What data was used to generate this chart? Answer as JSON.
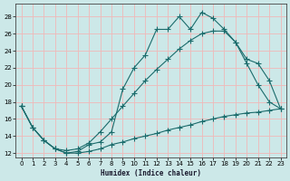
{
  "xlabel": "Humidex (Indice chaleur)",
  "background_color": "#cce8e8",
  "grid_color": "#f0b8b8",
  "line_color": "#1a6b6b",
  "xlim": [
    -0.5,
    23.5
  ],
  "ylim": [
    11.5,
    29.5
  ],
  "xticks": [
    0,
    1,
    2,
    3,
    4,
    5,
    6,
    7,
    8,
    9,
    10,
    11,
    12,
    13,
    14,
    15,
    16,
    17,
    18,
    19,
    20,
    21,
    22,
    23
  ],
  "yticks": [
    12,
    14,
    16,
    18,
    20,
    22,
    24,
    26,
    28
  ],
  "curve1_x": [
    0,
    1,
    2,
    3,
    4,
    5,
    6,
    7,
    8,
    9,
    10,
    11,
    12,
    13,
    14,
    15,
    16,
    17,
    18,
    19,
    20,
    21,
    22,
    23
  ],
  "curve1_y": [
    17.5,
    15.0,
    13.5,
    12.5,
    12.0,
    12.2,
    13.0,
    13.3,
    14.5,
    19.5,
    22.0,
    23.5,
    26.5,
    26.5,
    28.0,
    26.5,
    28.5,
    27.8,
    26.5,
    25.0,
    23.0,
    22.5,
    20.5,
    17.2
  ],
  "curve2_x": [
    0,
    1,
    2,
    3,
    4,
    5,
    6,
    7,
    8,
    9,
    10,
    11,
    12,
    13,
    14,
    15,
    16,
    17,
    18,
    19,
    20,
    21,
    22,
    23
  ],
  "curve2_y": [
    17.5,
    15.0,
    13.5,
    12.5,
    12.3,
    12.5,
    13.2,
    14.5,
    16.0,
    17.5,
    19.0,
    20.5,
    21.8,
    23.0,
    24.2,
    25.2,
    26.0,
    26.3,
    26.3,
    25.0,
    22.5,
    20.0,
    18.0,
    17.2
  ],
  "curve3_x": [
    0,
    1,
    2,
    3,
    4,
    5,
    6,
    7,
    8,
    9,
    10,
    11,
    12,
    13,
    14,
    15,
    16,
    17,
    18,
    19,
    20,
    21,
    22,
    23
  ],
  "curve3_y": [
    17.5,
    15.0,
    13.5,
    12.5,
    12.0,
    12.0,
    12.2,
    12.5,
    13.0,
    13.3,
    13.7,
    14.0,
    14.3,
    14.7,
    15.0,
    15.3,
    15.7,
    16.0,
    16.3,
    16.5,
    16.7,
    16.8,
    17.0,
    17.2
  ]
}
